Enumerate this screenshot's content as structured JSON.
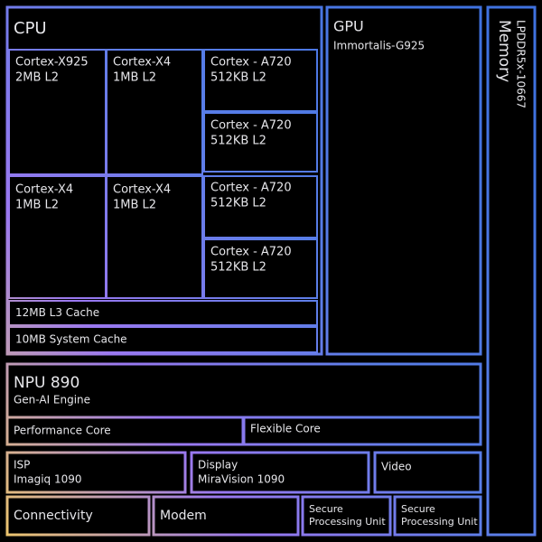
{
  "blocks": [
    {
      "lines": [
        "CPU"
      ]
    },
    {
      "lines": [
        "Cortex-X925",
        "2MB L2"
      ]
    },
    {
      "lines": [
        "Cortex-X4",
        "1MB L2"
      ]
    },
    {
      "lines": [
        "Cortex - A720",
        "512KB L2"
      ]
    },
    {
      "lines": [
        "Cortex - A720",
        "512KB L2"
      ]
    },
    {
      "lines": [
        "Cortex-X4",
        "1MB L2"
      ]
    },
    {
      "lines": [
        "Cortex-X4",
        "1MB L2"
      ]
    },
    {
      "lines": [
        "Cortex - A720",
        "512KB L2"
      ]
    },
    {
      "lines": [
        "Cortex - A720",
        "512KB L2"
      ]
    },
    {
      "lines": [
        "12MB L3 Cache"
      ]
    },
    {
      "lines": [
        "10MB System Cache"
      ]
    },
    {
      "lines": [
        "GPU",
        "Immortalis-G925"
      ]
    },
    {
      "lines": [
        "Memory",
        "LPDDR5x-10667"
      ]
    },
    {
      "lines": [
        "NPU 890",
        "Gen-AI Engine"
      ]
    },
    {
      "lines": [
        "Performance Core"
      ]
    },
    {
      "lines": [
        "Flexible Core"
      ]
    },
    {
      "lines": [
        "ISP",
        "Imagiq 1090"
      ]
    },
    {
      "lines": [
        "Display",
        "MiraVision 1090"
      ]
    },
    {
      "lines": [
        "Video"
      ]
    },
    {
      "lines": [
        "Connectivity"
      ]
    },
    {
      "lines": [
        "Modem"
      ]
    },
    {
      "lines": [
        "Secure",
        "Processing Unit"
      ]
    },
    {
      "lines": [
        "Secure",
        "Processing Unit"
      ]
    }
  ]
}
